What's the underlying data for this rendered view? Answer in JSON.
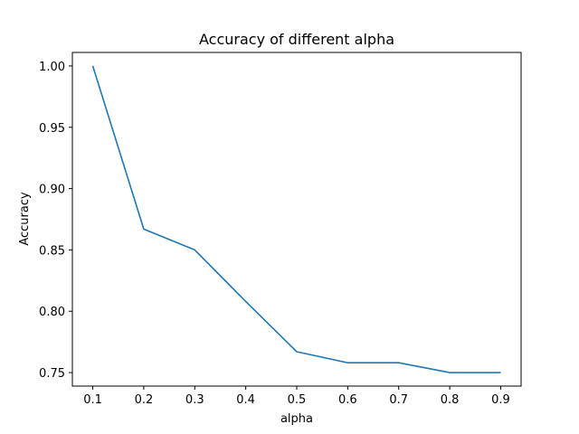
{
  "chart_data": {
    "type": "line",
    "title": "Accuracy of different alpha",
    "xlabel": "alpha",
    "ylabel": "Accuracy",
    "xlim": [
      0.06,
      0.94
    ],
    "ylim": [
      0.739,
      1.011
    ],
    "xticks": [
      0.1,
      0.2,
      0.3,
      0.4,
      0.5,
      0.6,
      0.7,
      0.8,
      0.9
    ],
    "xtick_labels": [
      "0.1",
      "0.2",
      "0.3",
      "0.4",
      "0.5",
      "0.6",
      "0.7",
      "0.8",
      "0.9"
    ],
    "yticks": [
      0.75,
      0.8,
      0.85,
      0.9,
      0.95,
      1.0
    ],
    "ytick_labels": [
      "0.75",
      "0.80",
      "0.85",
      "0.90",
      "0.95",
      "1.00"
    ],
    "grid": false,
    "legend": "none",
    "series": [
      {
        "color": "#1f77b4",
        "x": [
          0.1,
          0.2,
          0.3,
          0.4,
          0.5,
          0.6,
          0.7,
          0.8,
          0.9
        ],
        "y": [
          1.0,
          0.867,
          0.85,
          0.808,
          0.767,
          0.758,
          0.758,
          0.75,
          0.75
        ]
      }
    ]
  }
}
